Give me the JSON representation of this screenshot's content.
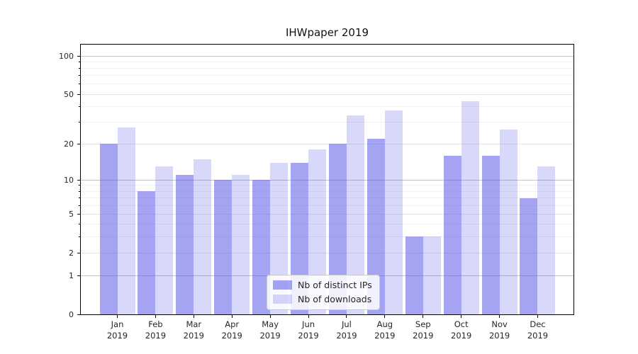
{
  "title": "IHWpaper 2019",
  "chart_data": {
    "type": "bar",
    "title": "IHWpaper 2019",
    "categories": [
      "Jan 2019",
      "Feb 2019",
      "Mar 2019",
      "Apr 2019",
      "May 2019",
      "Jun 2019",
      "Jul 2019",
      "Aug 2019",
      "Sep 2019",
      "Oct 2019",
      "Nov 2019",
      "Dec 2019"
    ],
    "months": [
      "Jan",
      "Feb",
      "Mar",
      "Apr",
      "May",
      "Jun",
      "Jul",
      "Aug",
      "Sep",
      "Oct",
      "Nov",
      "Dec"
    ],
    "year": "2019",
    "series": [
      {
        "name": "Nb of distinct IPs",
        "color": "rgba(90,90,232,0.55)",
        "values": [
          20,
          8,
          11,
          10,
          10,
          14,
          20,
          22,
          3,
          16,
          16,
          7
        ]
      },
      {
        "name": "Nb of downloads",
        "color": "rgba(90,90,232,0.235)",
        "values": [
          27,
          13,
          15,
          11,
          14,
          18,
          34,
          37,
          3,
          44,
          26,
          13
        ]
      }
    ],
    "xlabel": "",
    "ylabel": "",
    "yscale": "log10(value+1)",
    "yticks": [
      0,
      1,
      2,
      5,
      10,
      20,
      50,
      100
    ],
    "ylim": [
      0,
      126
    ],
    "grid": "on",
    "grid_decade_lines": [
      1,
      10,
      100
    ],
    "grid_mid_lines": [
      2,
      5,
      20,
      50
    ],
    "grid_minor_lines": [
      3,
      4,
      6,
      7,
      8,
      9,
      30,
      40,
      60,
      70,
      80,
      90
    ],
    "legend_position": "lower center inside plot"
  },
  "colors": {
    "bar_dark": "rgba(90,90,232,0.55)",
    "bar_light": "rgba(90,90,232,0.235)",
    "grid_decade": "#c3c3c3",
    "grid_mid": "#e4e4e4",
    "grid_minor": "#f1f1f1",
    "spine": "#000000",
    "text": "#262626"
  }
}
